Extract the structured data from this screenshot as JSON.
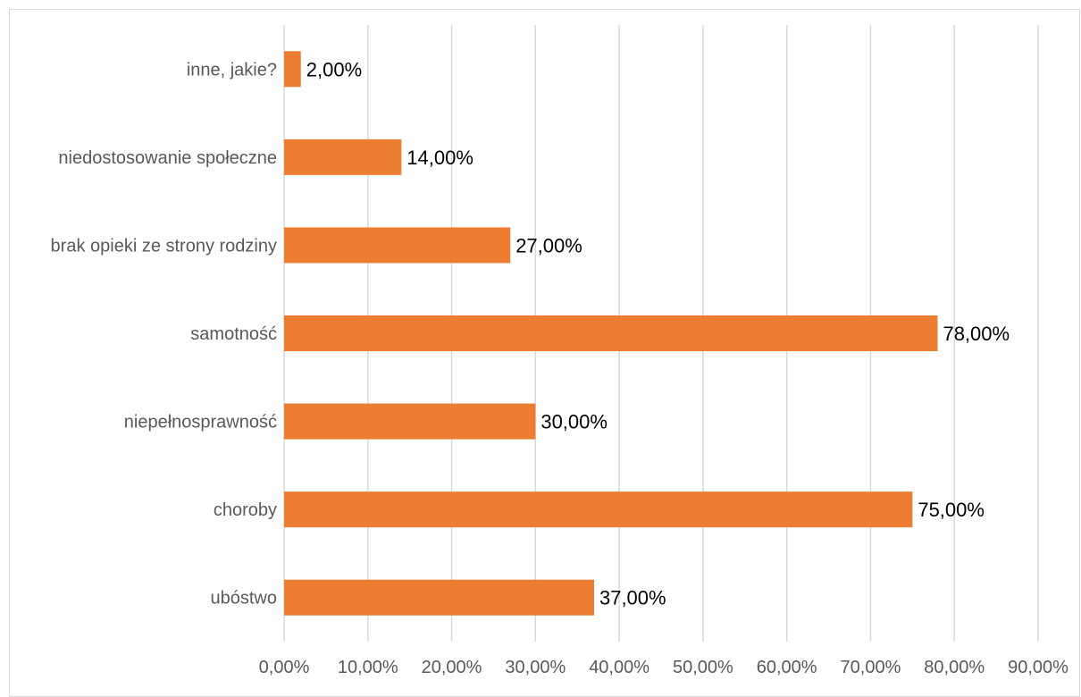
{
  "chart_data": {
    "type": "bar",
    "orientation": "horizontal",
    "categories": [
      "ubóstwo",
      "choroby",
      "niepełnosprawność",
      "samotność",
      "brak opieki ze strony rodziny",
      "niedostosowanie społeczne",
      "inne, jakie?"
    ],
    "values": [
      37,
      75,
      30,
      78,
      27,
      14,
      2
    ],
    "value_labels": [
      "37,00%",
      "75,00%",
      "30,00%",
      "78,00%",
      "27,00%",
      "14,00%",
      "2,00%"
    ],
    "xticks": [
      "0,00%",
      "10,00%",
      "20,00%",
      "30,00%",
      "40,00%",
      "50,00%",
      "60,00%",
      "70,00%",
      "80,00%",
      "90,00%"
    ],
    "xlim": [
      0,
      90
    ],
    "grid": "vertical",
    "bar_color": "#ED7D31",
    "grid_color": "#d9d9d9",
    "title": "",
    "xlabel": "",
    "ylabel": ""
  }
}
